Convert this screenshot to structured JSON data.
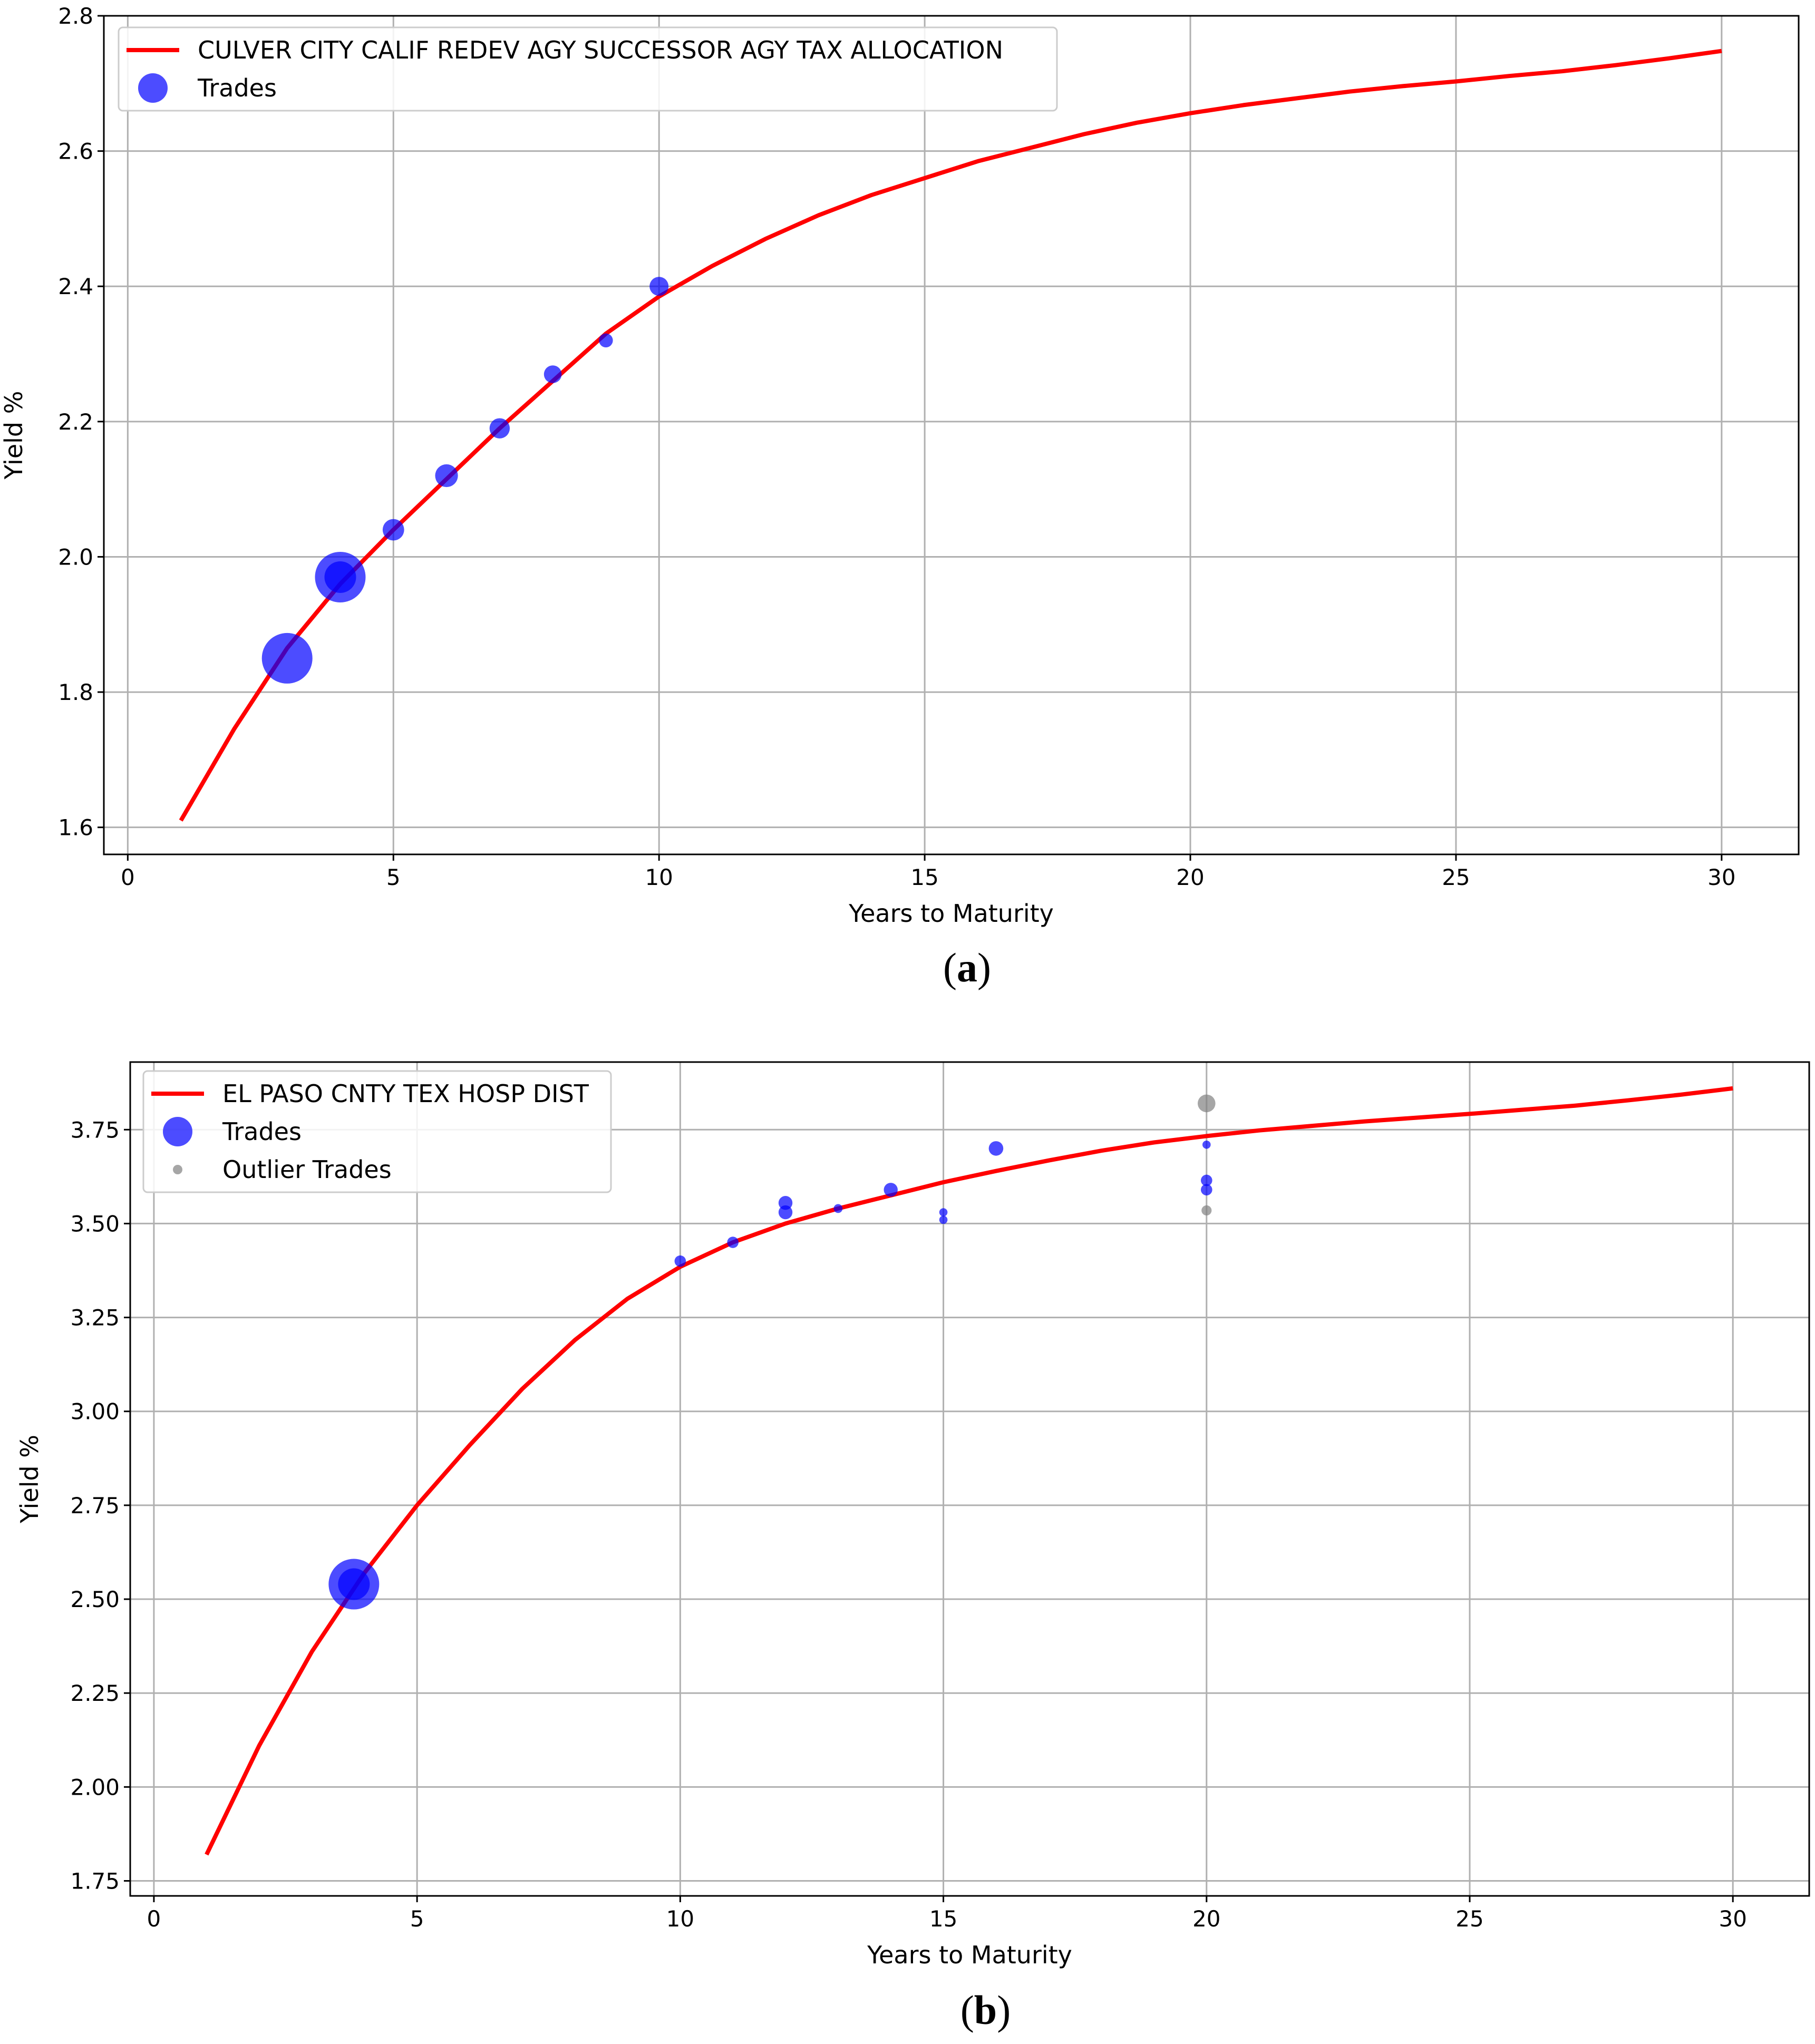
{
  "colors": {
    "curve": "#ff0000",
    "trades": "#0000ff",
    "outliers": "#808080",
    "grid": "#b0b0b0",
    "axes": "#000000"
  },
  "chart_data": [
    {
      "type": "line",
      "panel_label": "a",
      "title": "",
      "xlabel": "Years to Maturity",
      "ylabel": "Yield %",
      "xlim": [
        -0.45,
        31.45
      ],
      "ylim": [
        1.56,
        2.8
      ],
      "xticks": [
        0,
        5,
        10,
        15,
        20,
        25,
        30
      ],
      "xtick_labels": [
        "0",
        "5",
        "10",
        "15",
        "20",
        "25",
        "30"
      ],
      "yticks": [
        1.6,
        1.8,
        2.0,
        2.2,
        2.4,
        2.6,
        2.8
      ],
      "ytick_labels": [
        "1.6",
        "1.8",
        "2.0",
        "2.2",
        "2.4",
        "2.6",
        "2.8"
      ],
      "grid": true,
      "legend_position": "top-left",
      "series": [
        {
          "name": "CULVER CITY CALIF REDEV AGY SUCCESSOR AGY TAX ALLOCATION",
          "kind": "line",
          "color": "#ff0000",
          "x": [
            1,
            2,
            3,
            4,
            5,
            6,
            7,
            8,
            9,
            10,
            11,
            12,
            13,
            14,
            15,
            16,
            17,
            18,
            19,
            20,
            21,
            22,
            23,
            24,
            25,
            26,
            27,
            28,
            29,
            30
          ],
          "y": [
            1.61,
            1.745,
            1.865,
            1.96,
            2.04,
            2.115,
            2.19,
            2.26,
            2.33,
            2.385,
            2.43,
            2.47,
            2.505,
            2.535,
            2.56,
            2.585,
            2.605,
            2.625,
            2.642,
            2.656,
            2.668,
            2.678,
            2.688,
            2.696,
            2.703,
            2.711,
            2.718,
            2.727,
            2.737,
            2.748
          ]
        },
        {
          "name": "Trades",
          "kind": "scatter",
          "color": "#0000ff",
          "x": [
            3,
            4,
            4,
            5,
            6,
            7,
            8,
            9,
            10
          ],
          "y": [
            1.85,
            1.97,
            1.97,
            2.04,
            2.12,
            2.19,
            2.27,
            2.32,
            2.4
          ],
          "sizes": [
            8,
            8,
            5,
            3.4,
            3.6,
            3.2,
            2.8,
            2.2,
            3.0
          ]
        }
      ]
    },
    {
      "type": "line",
      "panel_label": "b",
      "title": "",
      "xlabel": "Years to Maturity",
      "ylabel": "Yield %",
      "xlim": [
        -0.45,
        31.45
      ],
      "ylim": [
        1.71,
        3.93
      ],
      "xticks": [
        0,
        5,
        10,
        15,
        20,
        25,
        30
      ],
      "xtick_labels": [
        "0",
        "5",
        "10",
        "15",
        "20",
        "25",
        "30"
      ],
      "yticks": [
        1.75,
        2.0,
        2.25,
        2.5,
        2.75,
        3.0,
        3.25,
        3.5,
        3.75
      ],
      "ytick_labels": [
        "1.75",
        "2.00",
        "2.25",
        "2.50",
        "2.75",
        "3.00",
        "3.25",
        "3.50",
        "3.75"
      ],
      "grid": true,
      "legend_position": "top-left",
      "series": [
        {
          "name": "EL PASO CNTY TEX HOSP DIST",
          "kind": "line",
          "color": "#ff0000",
          "x": [
            1,
            2,
            3,
            4,
            5,
            6,
            7,
            8,
            9,
            10,
            11,
            12,
            13,
            14,
            15,
            16,
            17,
            18,
            19,
            20,
            21,
            22,
            23,
            24,
            25,
            26,
            27,
            28,
            29,
            30
          ],
          "y": [
            1.82,
            2.11,
            2.36,
            2.57,
            2.75,
            2.91,
            3.06,
            3.19,
            3.3,
            3.385,
            3.45,
            3.5,
            3.54,
            3.575,
            3.61,
            3.64,
            3.668,
            3.694,
            3.716,
            3.733,
            3.748,
            3.76,
            3.772,
            3.782,
            3.792,
            3.803,
            3.814,
            3.828,
            3.843,
            3.86
          ]
        },
        {
          "name": "Trades",
          "kind": "scatter",
          "color": "#0000ff",
          "x": [
            3.8,
            3.8,
            10,
            11,
            12,
            12,
            13,
            14,
            15,
            15,
            16,
            20,
            20,
            20
          ],
          "y": [
            2.54,
            2.54,
            3.4,
            3.45,
            3.555,
            3.53,
            3.54,
            3.59,
            3.53,
            3.51,
            3.7,
            3.71,
            3.615,
            3.59
          ],
          "sizes": [
            8,
            5,
            1.8,
            1.8,
            2.2,
            2.2,
            1.4,
            2.2,
            1.3,
            1.3,
            2.3,
            1.3,
            1.8,
            1.8
          ]
        },
        {
          "name": "Outlier Trades",
          "kind": "scatter",
          "color": "#808080",
          "x": [
            20,
            20
          ],
          "y": [
            3.82,
            3.535
          ],
          "sizes": [
            2.8,
            1.6
          ]
        }
      ]
    }
  ]
}
